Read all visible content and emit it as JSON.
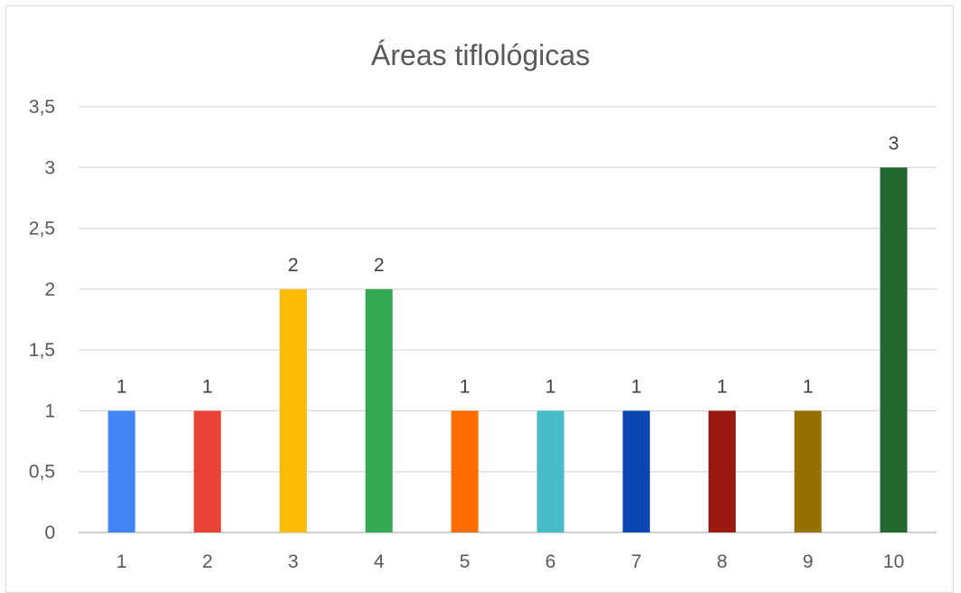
{
  "chart_data": {
    "type": "bar",
    "title": "Áreas tiflológicas",
    "xlabel": "",
    "ylabel": "",
    "categories": [
      "1",
      "2",
      "3",
      "4",
      "5",
      "6",
      "7",
      "8",
      "9",
      "10"
    ],
    "values": [
      1,
      1,
      2,
      2,
      1,
      1,
      1,
      1,
      1,
      3
    ],
    "data_labels": [
      "1",
      "1",
      "2",
      "2",
      "1",
      "1",
      "1",
      "1",
      "1",
      "3"
    ],
    "ylim": [
      0,
      3.5
    ],
    "yticks": [
      0,
      0.5,
      1,
      1.5,
      2,
      2.5,
      3,
      3.5
    ],
    "ytick_labels": [
      "0",
      "0,5",
      "1",
      "1,5",
      "2",
      "2,5",
      "3",
      "3,5"
    ],
    "colors": [
      "#4285F4",
      "#EA4335",
      "#FBBC04",
      "#34A853",
      "#FF6D01",
      "#46BDC6",
      "#0B47B2",
      "#9A1A12",
      "#967100",
      "#21672F"
    ],
    "grid": true,
    "legend": "none"
  }
}
